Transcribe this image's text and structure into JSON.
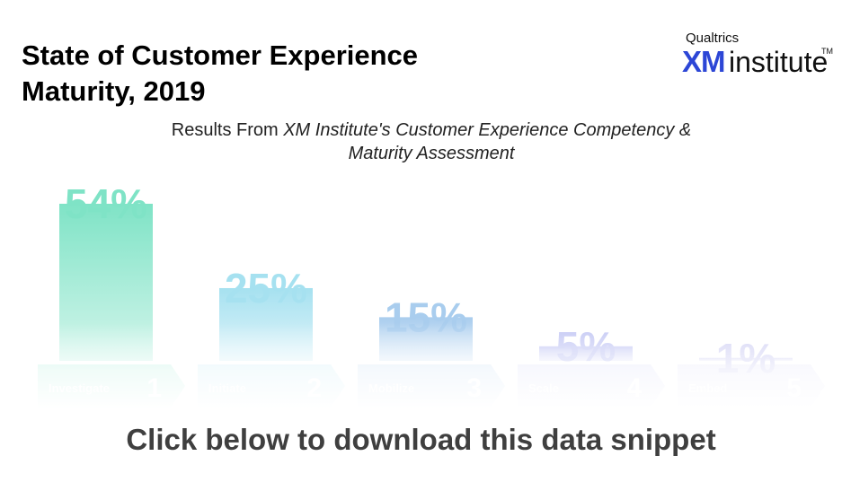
{
  "header": {
    "title_line1": "State of Customer Experience",
    "title_line2": "Maturity, 2019"
  },
  "logo": {
    "brand_small": "Qualtrics",
    "brand_xm": "XM",
    "brand_institute": "institute",
    "trademark": "TM"
  },
  "subtitle": {
    "prefix": "Results From ",
    "italic_line1": "XM Institute's Customer Experience Competency &",
    "italic_line2": "Maturity Assessment"
  },
  "chart_data": {
    "type": "bar",
    "categories": [
      "Investigate",
      "Initiate",
      "Mobilize",
      "Scale",
      "Embed"
    ],
    "stage_numbers": [
      "1",
      "2",
      "3",
      "4",
      "5"
    ],
    "values": [
      54,
      25,
      15,
      5,
      1
    ],
    "value_labels": [
      "54%",
      "25%",
      "15%",
      "5%",
      "1%"
    ],
    "colors": [
      "#7fe3c6",
      "#a6e1f0",
      "#a9cdee",
      "#c4c8f4",
      "#d2d2f4"
    ],
    "ylim": [
      0,
      54
    ],
    "grid": false,
    "legend": "none"
  },
  "footer": {
    "cta": "Click below to download this data snippet"
  }
}
